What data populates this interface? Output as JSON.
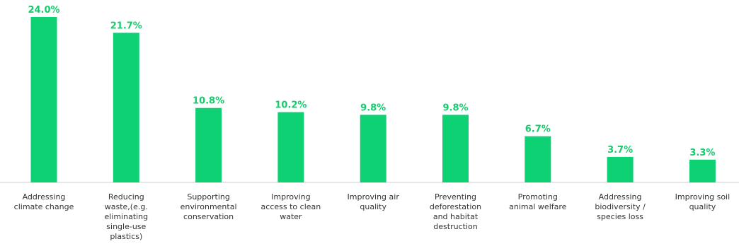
{
  "chart_data": {
    "type": "bar",
    "categories": [
      [
        "Addressing",
        "climate change"
      ],
      [
        "Reducing",
        "waste,(e.g.",
        "eliminating",
        "single-use",
        "plastics)"
      ],
      [
        "Supporting",
        "environmental",
        "conservation"
      ],
      [
        "Improving",
        "access to clean",
        "water"
      ],
      [
        "Improving air",
        "quality"
      ],
      [
        "Preventing",
        "deforestation",
        "and habitat",
        "destruction"
      ],
      [
        "Promoting",
        "animal welfare"
      ],
      [
        "Addressing",
        "biodiversity /",
        "species loss"
      ],
      [
        "Improving soil",
        "quality"
      ]
    ],
    "values": [
      24.0,
      21.7,
      10.8,
      10.2,
      9.8,
      9.8,
      6.7,
      3.7,
      3.3
    ],
    "value_labels": [
      "24.0%",
      "21.7%",
      "10.8%",
      "10.2%",
      "9.8%",
      "9.8%",
      "6.7%",
      "3.7%",
      "3.3%"
    ],
    "bar_color": "#0ed174",
    "label_color": "#14cc6c",
    "ylim": [
      0,
      24.0
    ],
    "grid": false
  }
}
